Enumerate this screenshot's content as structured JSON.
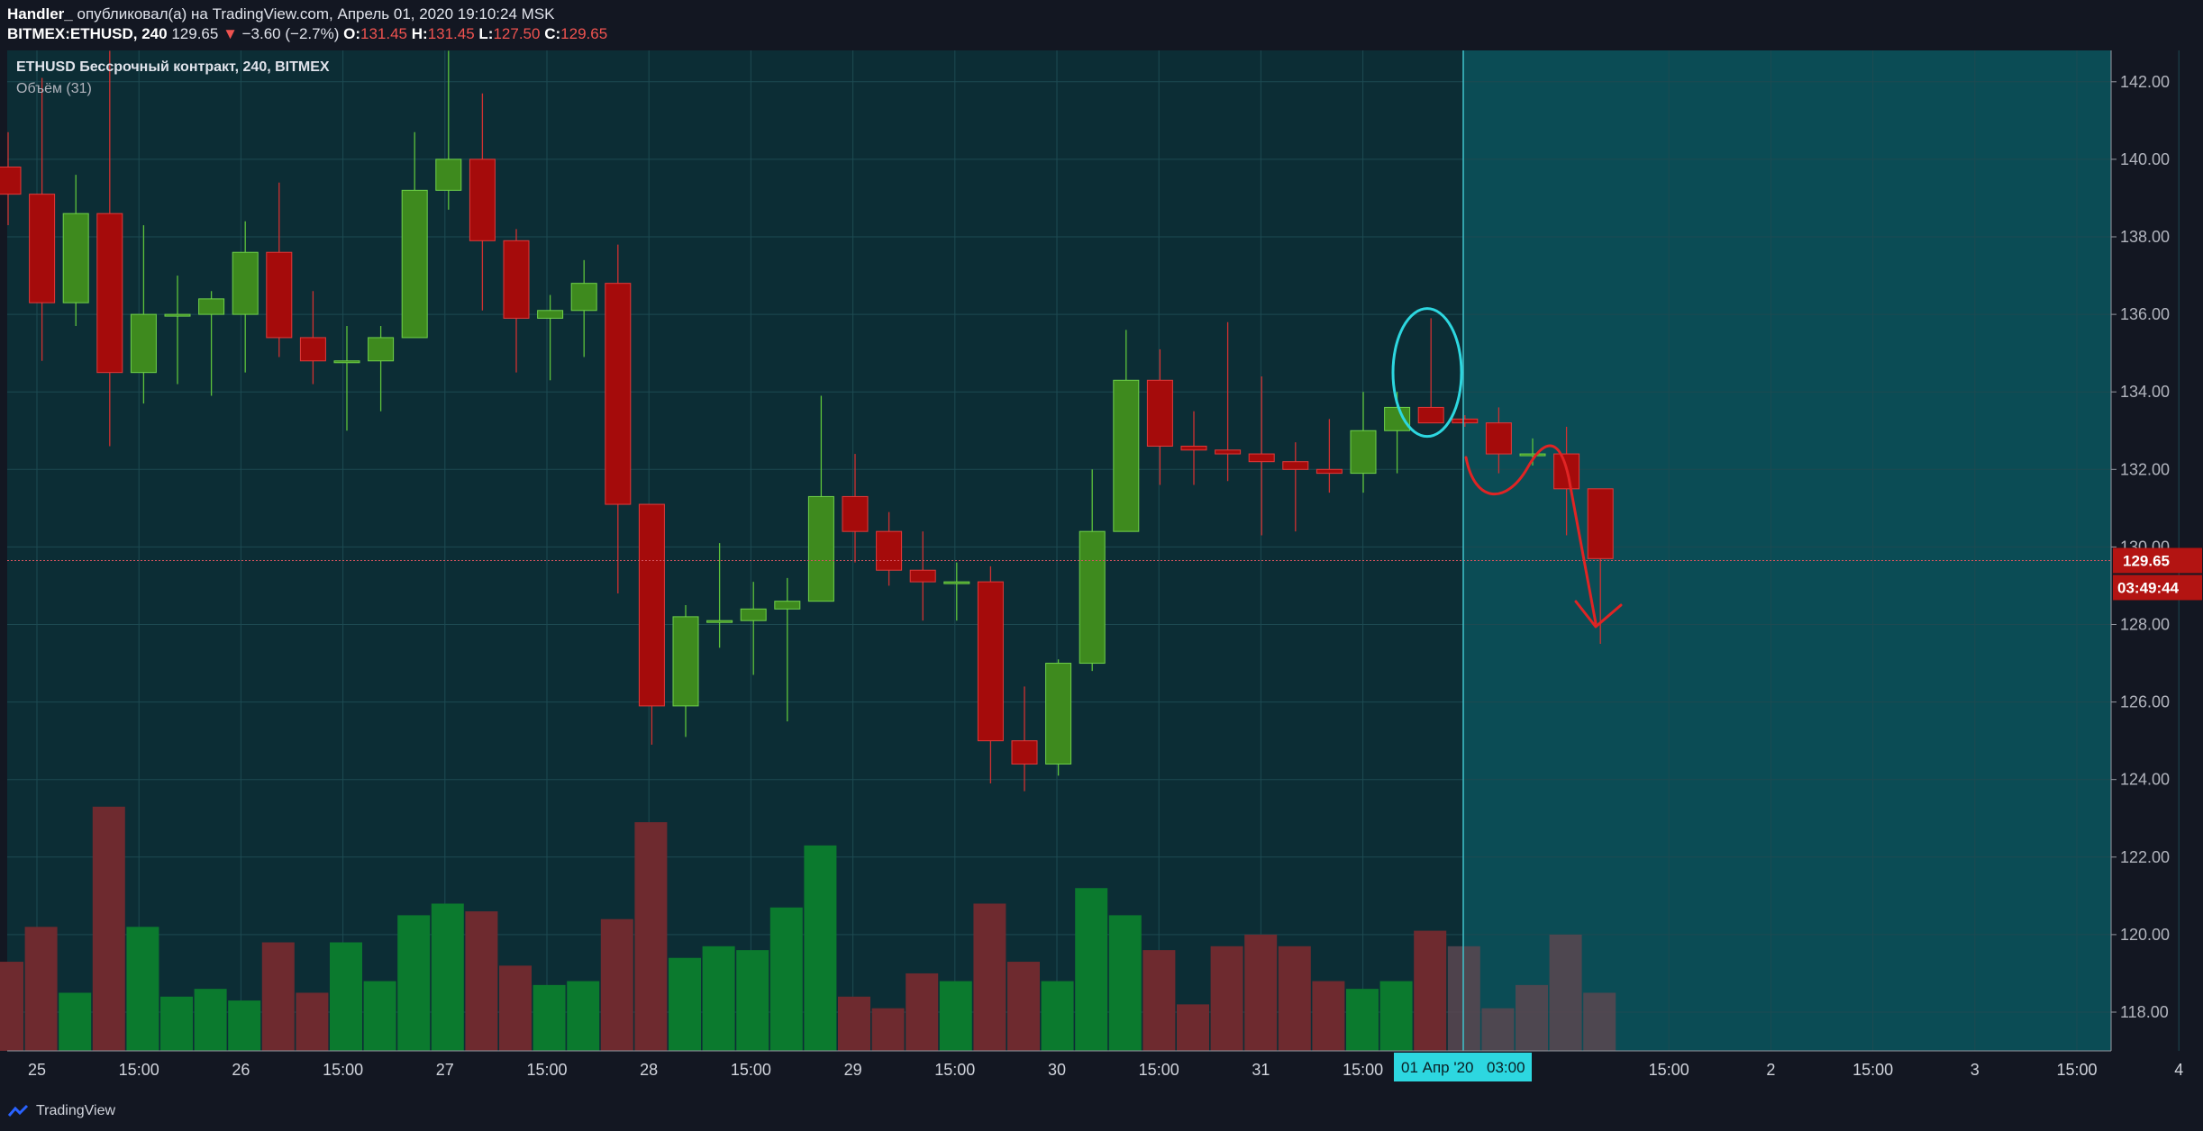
{
  "header": {
    "author": "Handler_",
    "published_text": "опубликовал(а) на TradingView.com, Апрель 01, 2020 19:10:24 MSK",
    "symbol": "BITMEX:ETHUSD, 240",
    "last": "129.65",
    "change_arrow": "▼",
    "change": "−3.60 (−2.7%)",
    "o_label": "O:",
    "o_value": "131.45",
    "h_label": "H:",
    "h_value": "131.45",
    "l_label": "L:",
    "l_value": "127.50",
    "c_label": "C:",
    "c_value": "129.65"
  },
  "legend": {
    "title": "ETHUSD Бессрочный контракт, 240, BITMEX",
    "volume": "Объём (31)"
  },
  "price_badge": {
    "price": "129.65",
    "countdown": "03:49:44"
  },
  "time_badge": {
    "date": "01 Апр '20",
    "time": "03:00"
  },
  "footer": {
    "brand": "TradingView"
  },
  "colors": {
    "background": "#0c2d35",
    "future_area": "#0b4c55",
    "up": "#3e8a1e",
    "down": "#a50b0b",
    "vol_up": "#0b7a2e",
    "vol_down": "#6e2a2f",
    "vol_future": "#5a4650",
    "annotation_circle": "#2dd7e0",
    "annotation_arrow": "#e02424",
    "badge": "#b31412",
    "cursor_line": "#3fc3cc"
  },
  "chart_data": {
    "type": "candlestick",
    "title": "ETHUSD Бессрочный контракт, 240, BITMEX",
    "y_axis": {
      "ticks": [
        "118.00",
        "120.00",
        "122.00",
        "124.00",
        "126.00",
        "128.00",
        "130.00",
        "132.00",
        "134.00",
        "136.00",
        "138.00",
        "140.00",
        "142.00"
      ],
      "range": [
        117.3,
        142.8
      ]
    },
    "x_axis": {
      "ticks": [
        "25",
        "15:00",
        "26",
        "15:00",
        "27",
        "15:00",
        "28",
        "15:00",
        "29",
        "15:00",
        "30",
        "15:00",
        "31",
        "15:00",
        "01 Апр '20",
        "03:00",
        "15:00",
        "2",
        "15:00",
        "3",
        "15:00",
        "4"
      ]
    },
    "candles": [
      {
        "o": 139.8,
        "h": 140.7,
        "l": 138.3,
        "c": 139.1,
        "v": 119.3
      },
      {
        "o": 139.1,
        "h": 142.1,
        "l": 134.8,
        "c": 136.3,
        "v": 120.2
      },
      {
        "o": 136.3,
        "h": 139.6,
        "l": 135.7,
        "c": 138.6,
        "v": 118.5
      },
      {
        "o": 138.6,
        "h": 142.8,
        "l": 132.6,
        "c": 134.5,
        "v": 123.3
      },
      {
        "o": 134.5,
        "h": 138.3,
        "l": 133.7,
        "c": 136.0,
        "v": 120.2
      },
      {
        "o": 136.0,
        "h": 137.0,
        "l": 134.2,
        "c": 136.0,
        "v": 118.4
      },
      {
        "o": 136.0,
        "h": 136.6,
        "l": 133.9,
        "c": 136.4,
        "v": 118.6
      },
      {
        "o": 136.0,
        "h": 138.4,
        "l": 134.5,
        "c": 137.6,
        "v": 118.3
      },
      {
        "o": 137.6,
        "h": 139.4,
        "l": 134.9,
        "c": 135.4,
        "v": 119.8
      },
      {
        "o": 135.4,
        "h": 136.6,
        "l": 134.2,
        "c": 134.8,
        "v": 118.5
      },
      {
        "o": 134.8,
        "h": 135.7,
        "l": 133.0,
        "c": 134.8,
        "v": 119.8
      },
      {
        "o": 134.8,
        "h": 135.7,
        "l": 133.5,
        "c": 135.4,
        "v": 118.8
      },
      {
        "o": 135.4,
        "h": 140.7,
        "l": 135.4,
        "c": 139.2,
        "v": 120.5
      },
      {
        "o": 139.2,
        "h": 142.8,
        "l": 138.7,
        "c": 140.0,
        "v": 120.8
      },
      {
        "o": 140.0,
        "h": 141.7,
        "l": 136.1,
        "c": 137.9,
        "v": 120.6
      },
      {
        "o": 137.9,
        "h": 138.2,
        "l": 134.5,
        "c": 135.9,
        "v": 119.2
      },
      {
        "o": 135.9,
        "h": 136.5,
        "l": 134.3,
        "c": 136.1,
        "v": 118.7
      },
      {
        "o": 136.1,
        "h": 137.4,
        "l": 134.9,
        "c": 136.8,
        "v": 118.8
      },
      {
        "o": 136.8,
        "h": 137.8,
        "l": 128.8,
        "c": 131.1,
        "v": 120.4
      },
      {
        "o": 131.1,
        "h": 131.1,
        "l": 124.9,
        "c": 125.9,
        "v": 122.9
      },
      {
        "o": 125.9,
        "h": 128.5,
        "l": 125.1,
        "c": 128.2,
        "v": 119.4
      },
      {
        "o": 128.1,
        "h": 130.1,
        "l": 127.4,
        "c": 128.1,
        "v": 119.7
      },
      {
        "o": 128.1,
        "h": 129.1,
        "l": 126.7,
        "c": 128.4,
        "v": 119.6
      },
      {
        "o": 128.4,
        "h": 129.2,
        "l": 125.5,
        "c": 128.6,
        "v": 120.7
      },
      {
        "o": 128.6,
        "h": 133.9,
        "l": 128.6,
        "c": 131.3,
        "v": 122.3
      },
      {
        "o": 131.3,
        "h": 132.4,
        "l": 129.6,
        "c": 130.4,
        "v": 118.4
      },
      {
        "o": 130.4,
        "h": 130.9,
        "l": 129.0,
        "c": 129.4,
        "v": 118.1
      },
      {
        "o": 129.4,
        "h": 130.4,
        "l": 128.1,
        "c": 129.1,
        "v": 119.0
      },
      {
        "o": 129.1,
        "h": 129.6,
        "l": 128.1,
        "c": 129.1,
        "v": 118.8
      },
      {
        "o": 129.1,
        "h": 129.5,
        "l": 123.9,
        "c": 125.0,
        "v": 120.8
      },
      {
        "o": 125.0,
        "h": 126.4,
        "l": 123.7,
        "c": 124.4,
        "v": 119.3
      },
      {
        "o": 124.4,
        "h": 127.1,
        "l": 124.1,
        "c": 127.0,
        "v": 118.8
      },
      {
        "o": 127.0,
        "h": 132.0,
        "l": 126.8,
        "c": 130.4,
        "v": 121.2
      },
      {
        "o": 130.4,
        "h": 135.6,
        "l": 130.4,
        "c": 134.3,
        "v": 120.5
      },
      {
        "o": 134.3,
        "h": 135.1,
        "l": 131.6,
        "c": 132.6,
        "v": 119.6
      },
      {
        "o": 132.6,
        "h": 133.5,
        "l": 131.6,
        "c": 132.5,
        "v": 118.2
      },
      {
        "o": 132.5,
        "h": 135.8,
        "l": 131.7,
        "c": 132.4,
        "v": 119.7
      },
      {
        "o": 132.4,
        "h": 134.4,
        "l": 130.3,
        "c": 132.2,
        "v": 120.0
      },
      {
        "o": 132.2,
        "h": 132.7,
        "l": 130.4,
        "c": 132.0,
        "v": 119.7
      },
      {
        "o": 132.0,
        "h": 133.3,
        "l": 131.4,
        "c": 131.9,
        "v": 118.8
      },
      {
        "o": 131.9,
        "h": 134.0,
        "l": 131.4,
        "c": 133.0,
        "v": 118.6
      },
      {
        "o": 133.0,
        "h": 134.0,
        "l": 131.9,
        "c": 133.6,
        "v": 118.8
      },
      {
        "o": 133.6,
        "h": 135.9,
        "l": 133.2,
        "c": 133.2,
        "v": 120.1
      },
      {
        "o": 133.3,
        "h": 133.4,
        "l": 133.1,
        "c": 133.2,
        "v": 119.7
      },
      {
        "o": 133.2,
        "h": 133.6,
        "l": 131.9,
        "c": 132.4,
        "v": 118.1
      },
      {
        "o": 132.4,
        "h": 132.8,
        "l": 132.1,
        "c": 132.4,
        "v": 118.7
      },
      {
        "o": 132.4,
        "h": 133.1,
        "l": 130.3,
        "c": 131.5,
        "v": 120.0
      },
      {
        "o": 131.5,
        "h": 131.5,
        "l": 127.5,
        "c": 129.7,
        "v": 118.5
      }
    ],
    "last_price": 129.65
  }
}
